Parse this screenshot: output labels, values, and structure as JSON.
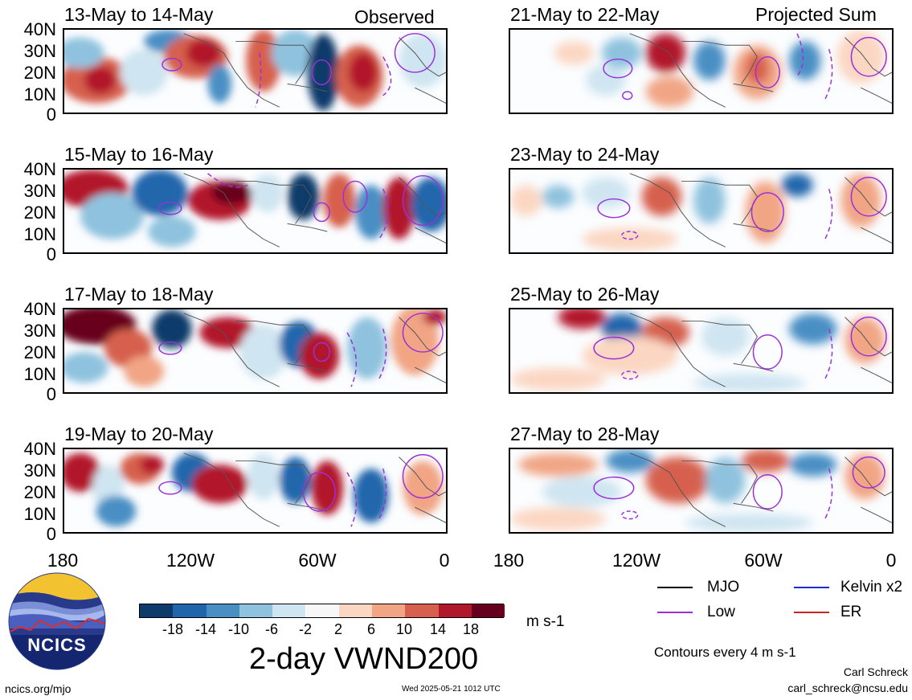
{
  "panels_left": [
    {
      "title": "13-May to 14-May",
      "label": "Observed"
    },
    {
      "title": "15-May to 16-May",
      "label": ""
    },
    {
      "title": "17-May to 18-May",
      "label": ""
    },
    {
      "title": "19-May to 20-May",
      "label": ""
    }
  ],
  "panels_right": [
    {
      "title": "21-May to 22-May",
      "label": "Projected Sum"
    },
    {
      "title": "23-May to 24-May",
      "label": ""
    },
    {
      "title": "25-May to 26-May",
      "label": ""
    },
    {
      "title": "27-May to 28-May",
      "label": ""
    }
  ],
  "y_axis_labels": [
    "40N",
    "30N",
    "20N",
    "10N",
    "0"
  ],
  "x_axis_labels": [
    "180",
    "120W",
    "60W",
    "0"
  ],
  "colorbar": {
    "colors": [
      "#0d3b6b",
      "#2166ac",
      "#4a8fc4",
      "#8fc2de",
      "#cfe5f1",
      "#f7f7f7",
      "#fbd7c3",
      "#f1a585",
      "#d6604d",
      "#b2182b",
      "#67001f"
    ],
    "tick_labels": [
      "-18",
      "-14",
      "-10",
      "-6",
      "-2",
      "2",
      "6",
      "10",
      "14",
      "18"
    ],
    "units": "m s-1",
    "title": "2-day VWND200"
  },
  "legend": {
    "items": [
      {
        "label": "MJO",
        "color": "#000000"
      },
      {
        "label": "Kelvin x2",
        "color": "#1f2ccc"
      },
      {
        "label": "Low",
        "color": "#9b30d9"
      },
      {
        "label": "ER",
        "color": "#cc2222"
      }
    ],
    "note": "Contours every 4 m s-1"
  },
  "logo": {
    "text": "NCICS"
  },
  "footer": {
    "url": "ncics.org/mjo",
    "timestamp": "Wed 2025-05-21 1012 UTC",
    "author": "Carl Schreck",
    "email": "carl_schreck@ncsu.edu"
  }
}
